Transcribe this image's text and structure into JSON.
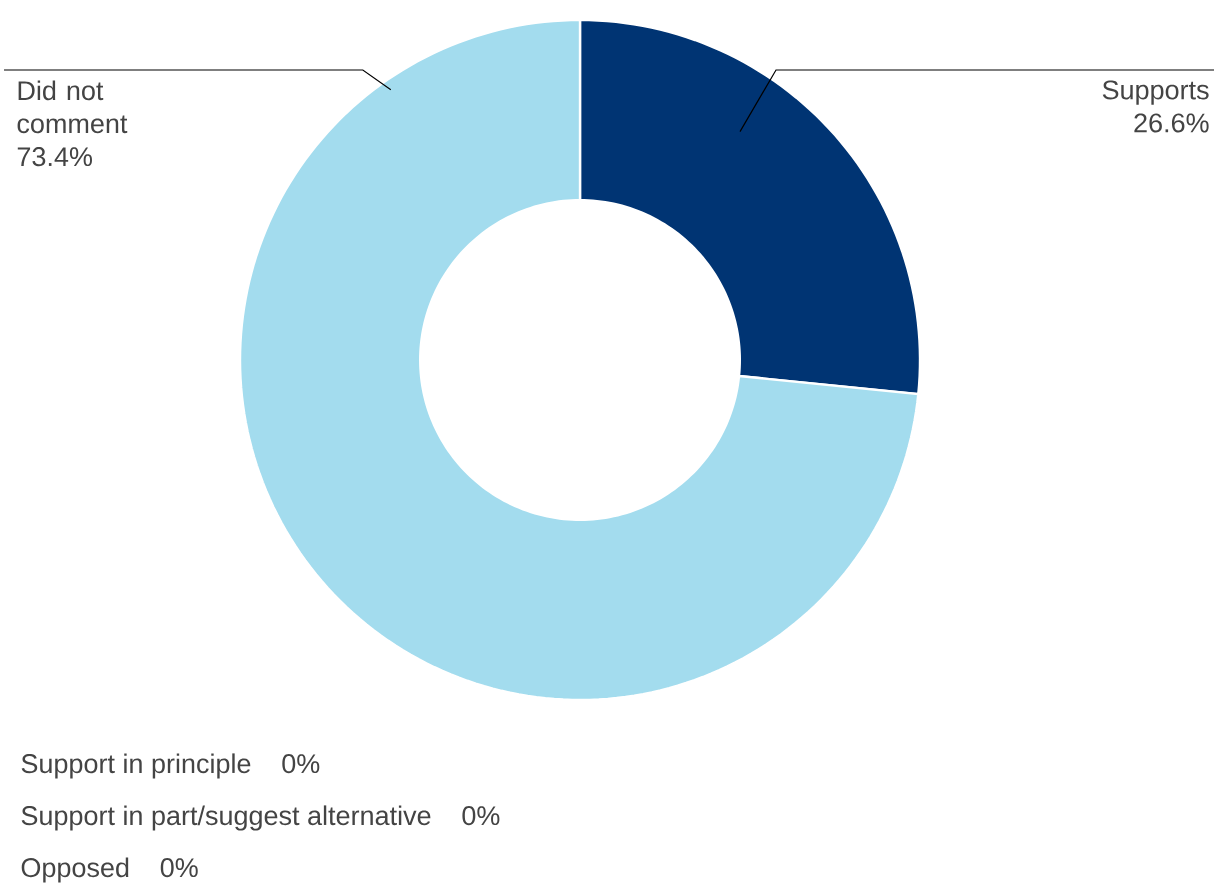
{
  "chart_data": {
    "type": "donut",
    "categories": [
      "Supports",
      "Did not comment",
      "Support in principle",
      "Support in part/suggest alternative",
      "Opposed"
    ],
    "values": [
      26.6,
      73.4,
      0,
      0,
      0
    ],
    "value_labels": [
      "26.6%",
      "73.4%",
      "0%",
      "0%",
      "0%"
    ],
    "colors": [
      "#003473",
      "#a3dcee",
      null,
      null,
      null
    ]
  }
}
